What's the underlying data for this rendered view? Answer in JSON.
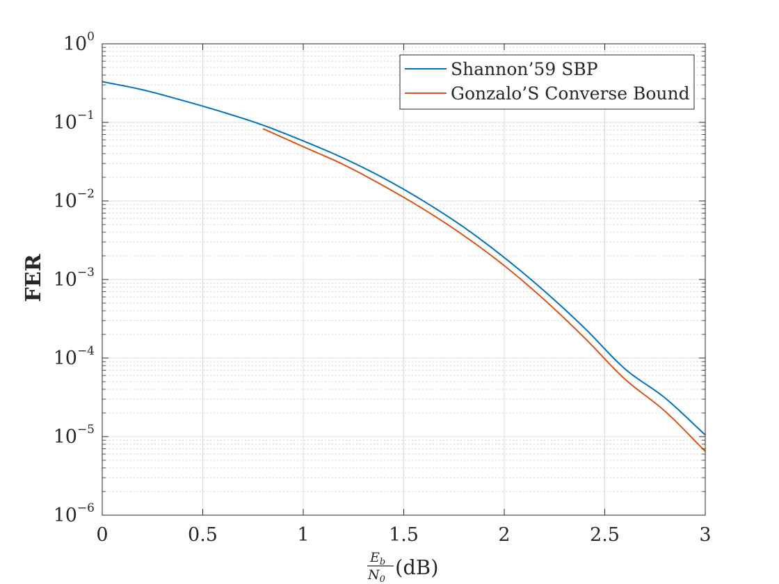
{
  "chart_data": {
    "type": "line",
    "xlabel": {
      "numerator": "E",
      "numerator_sub": "b",
      "denominator": "N",
      "denominator_sub": "0",
      "unit": "(dB)"
    },
    "ylabel": "FER",
    "xlim": [
      0,
      3
    ],
    "ylim": [
      1e-06,
      1
    ],
    "yscale": "log",
    "grid": true,
    "minor_grid": true,
    "legend_position": "top-right",
    "x_ticks": [
      "0",
      "0.5",
      "1",
      "1.5",
      "2",
      "2.5",
      "3"
    ],
    "x_tick_values": [
      0,
      0.5,
      1,
      1.5,
      2,
      2.5,
      3
    ],
    "y_ticks": [
      {
        "base": "10",
        "exp": "0",
        "value": 1
      },
      {
        "base": "10",
        "exp": "−1",
        "value": 0.1
      },
      {
        "base": "10",
        "exp": "−2",
        "value": 0.01
      },
      {
        "base": "10",
        "exp": "−3",
        "value": 0.001
      },
      {
        "base": "10",
        "exp": "−4",
        "value": 0.0001
      },
      {
        "base": "10",
        "exp": "−5",
        "value": 1e-05
      },
      {
        "base": "10",
        "exp": "−6",
        "value": 1e-06
      }
    ],
    "series": [
      {
        "name": "Shannon’59 SBP",
        "color": "#0072BD",
        "x": [
          0,
          0.2,
          0.4,
          0.6,
          0.8,
          1.0,
          1.2,
          1.4,
          1.6,
          1.8,
          2.0,
          2.2,
          2.4,
          2.6,
          2.8,
          3.0
        ],
        "y": [
          0.33,
          0.26,
          0.19,
          0.135,
          0.092,
          0.058,
          0.035,
          0.0195,
          0.0099,
          0.0046,
          0.0019,
          0.00071,
          0.00024,
          7.3e-05,
          3.1e-05,
          1.05e-05
        ]
      },
      {
        "name": "Gonzalo’S Converse Bound",
        "color": "#D95319",
        "x": [
          0.8,
          1.0,
          1.2,
          1.4,
          1.6,
          1.8,
          2.0,
          2.2,
          2.4,
          2.6,
          2.8,
          3.0
        ],
        "y": [
          0.083,
          0.049,
          0.029,
          0.0155,
          0.0078,
          0.0036,
          0.0015,
          0.00055,
          0.00018,
          5.4e-05,
          2.1e-05,
          6.5e-06
        ]
      }
    ]
  }
}
